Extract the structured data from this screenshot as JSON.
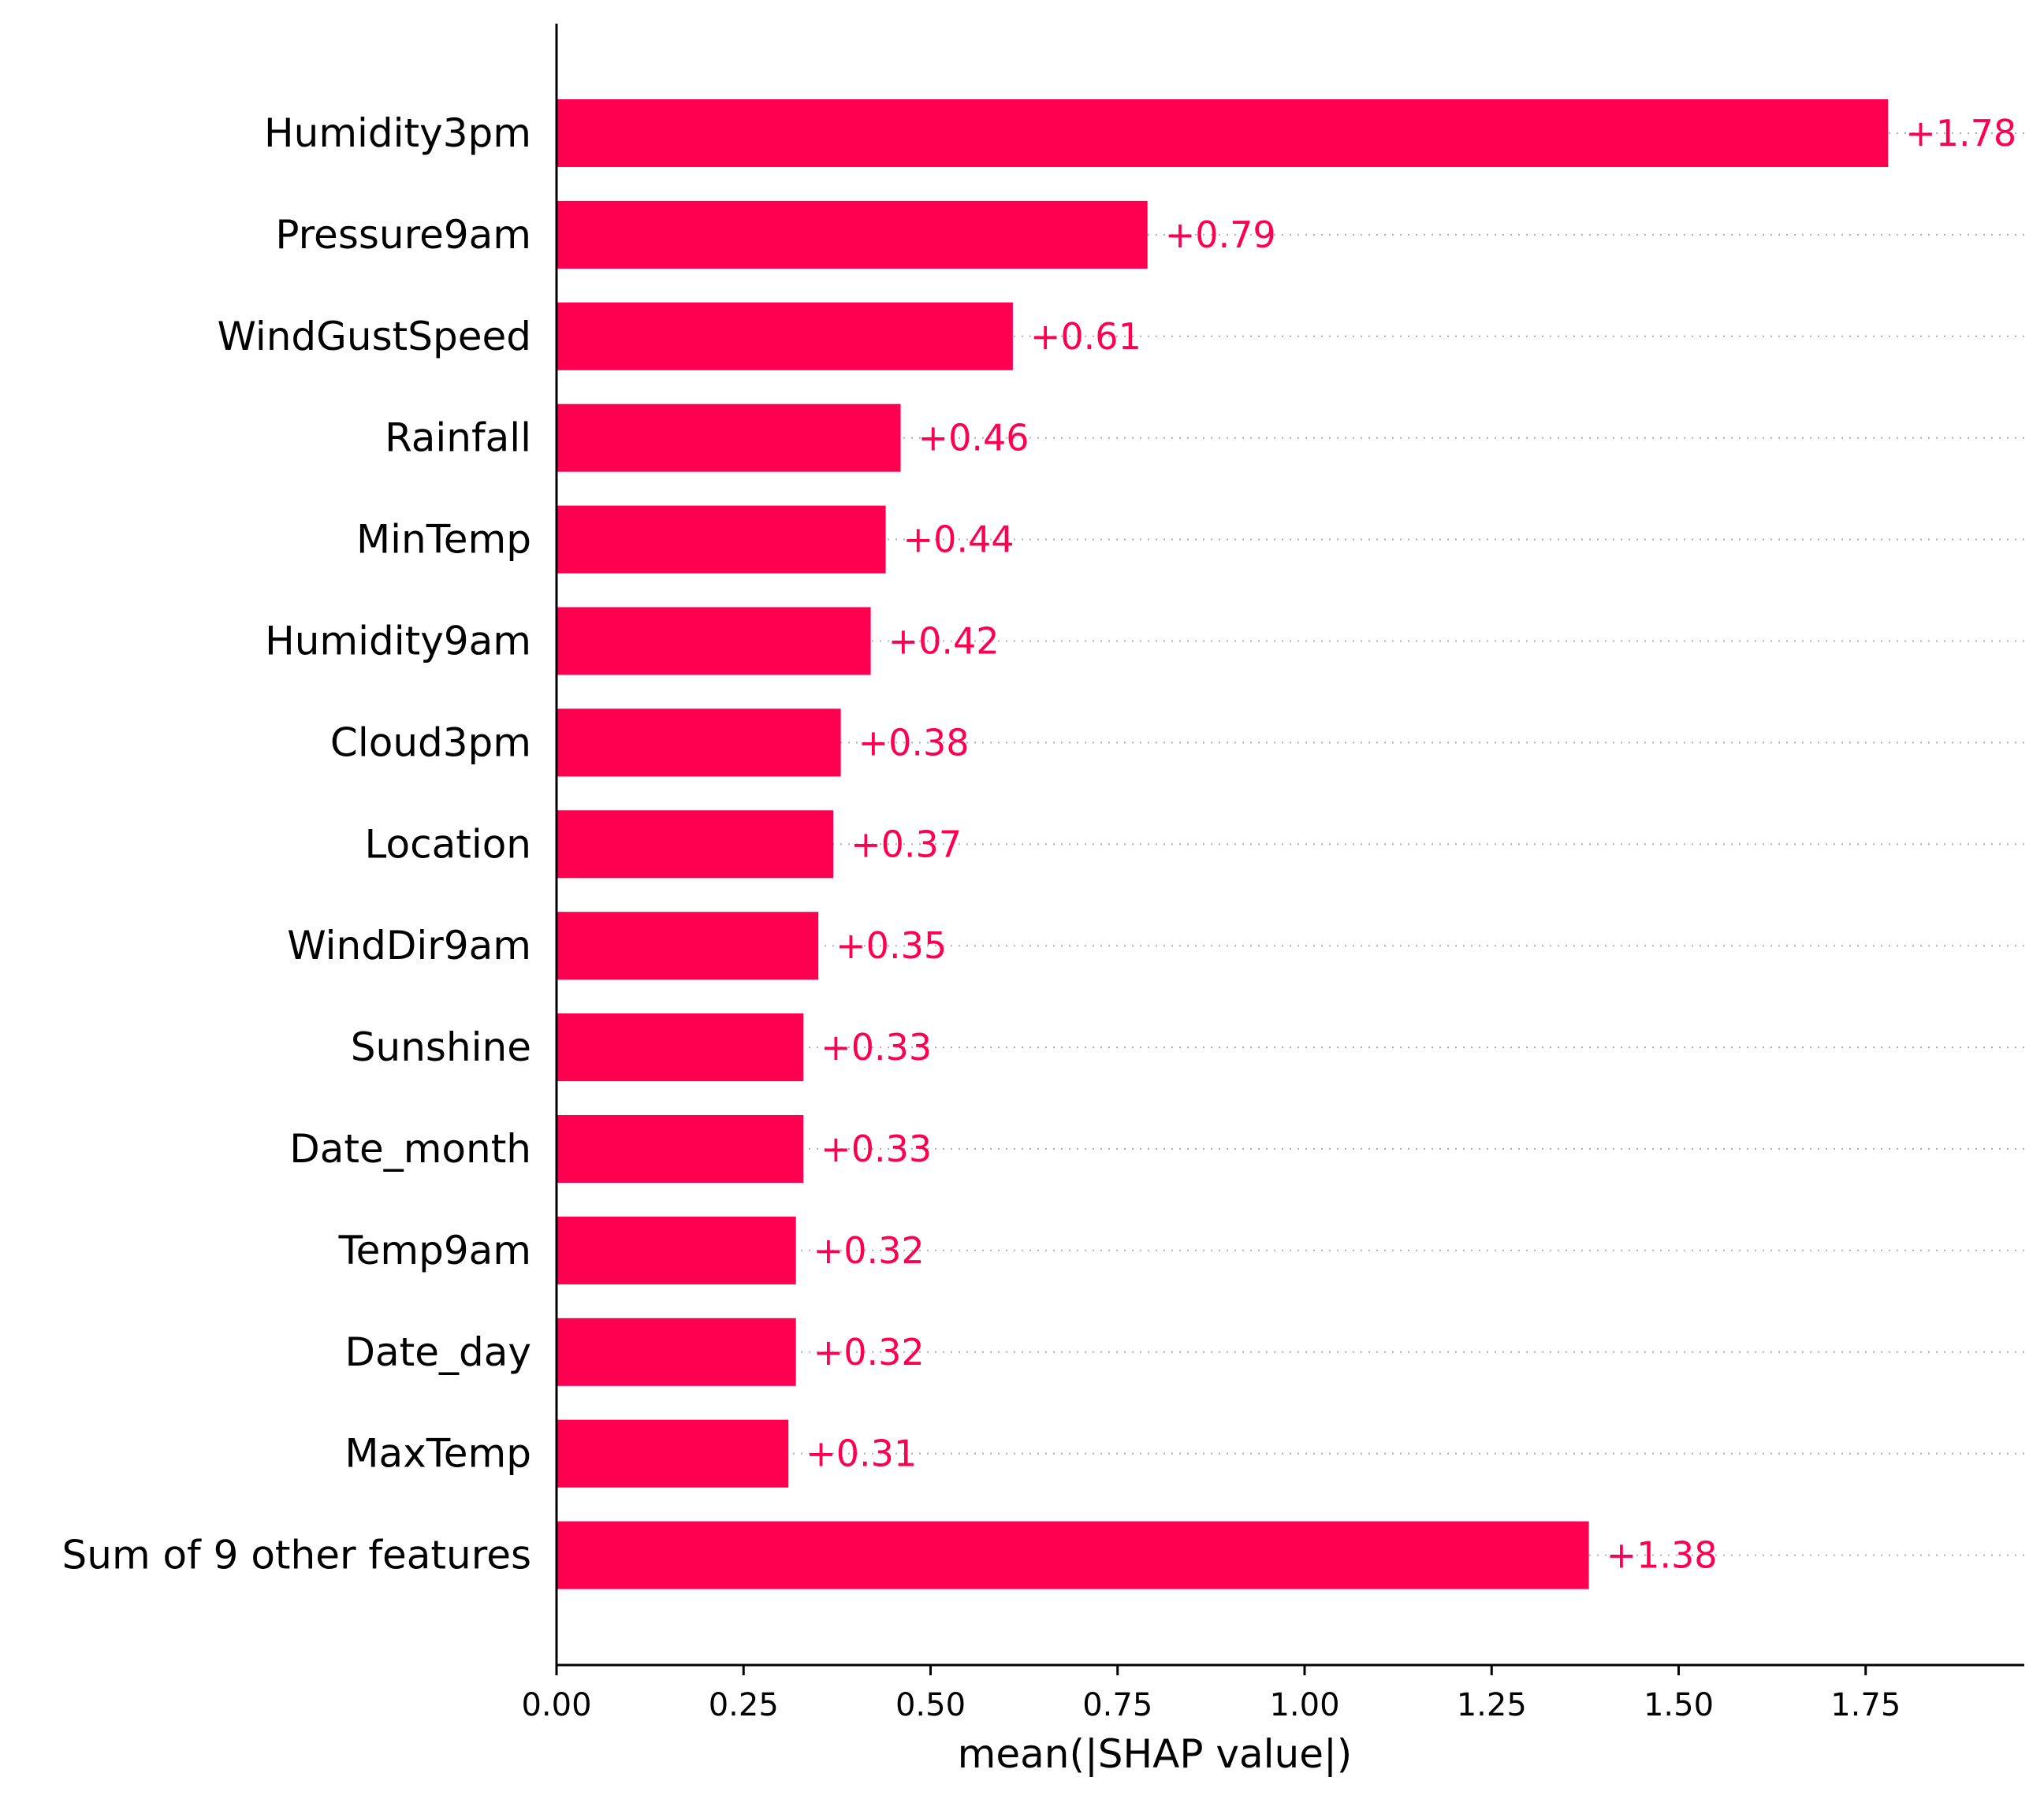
{
  "chart_data": {
    "type": "bar",
    "orientation": "horizontal",
    "xlabel": "mean(|SHAP value|)",
    "xlim": [
      0,
      1.96
    ],
    "xticks": [
      "0.00",
      "0.25",
      "0.50",
      "0.75",
      "1.00",
      "1.25",
      "1.50",
      "1.75"
    ],
    "bar_color": "#ff0051",
    "grid": "dotted horizontal guide lines",
    "categories": [
      "Humidity3pm",
      "Pressure9am",
      "WindGustSpeed",
      "Rainfall",
      "MinTemp",
      "Humidity9am",
      "Cloud3pm",
      "Location",
      "WindDir9am",
      "Sunshine",
      "Date_month",
      "Temp9am",
      "Date_day",
      "MaxTemp",
      "Sum of 9 other features"
    ],
    "values": [
      1.78,
      0.79,
      0.61,
      0.46,
      0.44,
      0.42,
      0.38,
      0.37,
      0.35,
      0.33,
      0.33,
      0.32,
      0.32,
      0.31,
      1.38
    ],
    "value_labels": [
      "+1.78",
      "+0.79",
      "+0.61",
      "+0.46",
      "+0.44",
      "+0.42",
      "+0.38",
      "+0.37",
      "+0.35",
      "+0.33",
      "+0.33",
      "+0.32",
      "+0.32",
      "+0.31",
      "+1.38"
    ]
  }
}
